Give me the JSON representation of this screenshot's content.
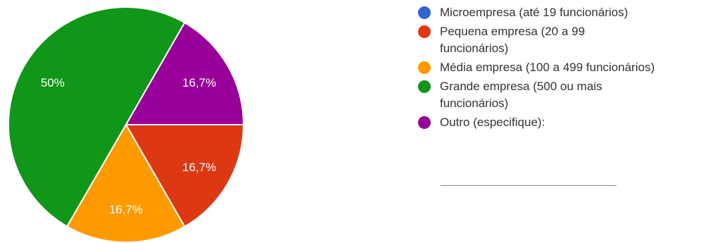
{
  "chart_data": {
    "type": "pie",
    "slices": [
      {
        "label": "Microempresa (até 19 funcionários)",
        "value": 0,
        "display": "",
        "color": "#3366cc"
      },
      {
        "label": "Pequena empresa (20 a 99\nfuncionários)",
        "value": 16.7,
        "display": "16,7%",
        "color": "#dc3912"
      },
      {
        "label": "Média empresa (100 a 499 funcionários)",
        "value": 16.7,
        "display": "16,7%",
        "color": "#ff9900"
      },
      {
        "label": "Grande empresa (500 ou mais\nfuncionários)",
        "value": 50,
        "display": "50%",
        "color": "#109618"
      },
      {
        "label": "Outro (especifique):",
        "value": 16.7,
        "display": "16,7%",
        "color": "#990099"
      }
    ],
    "legend_position": "right"
  }
}
